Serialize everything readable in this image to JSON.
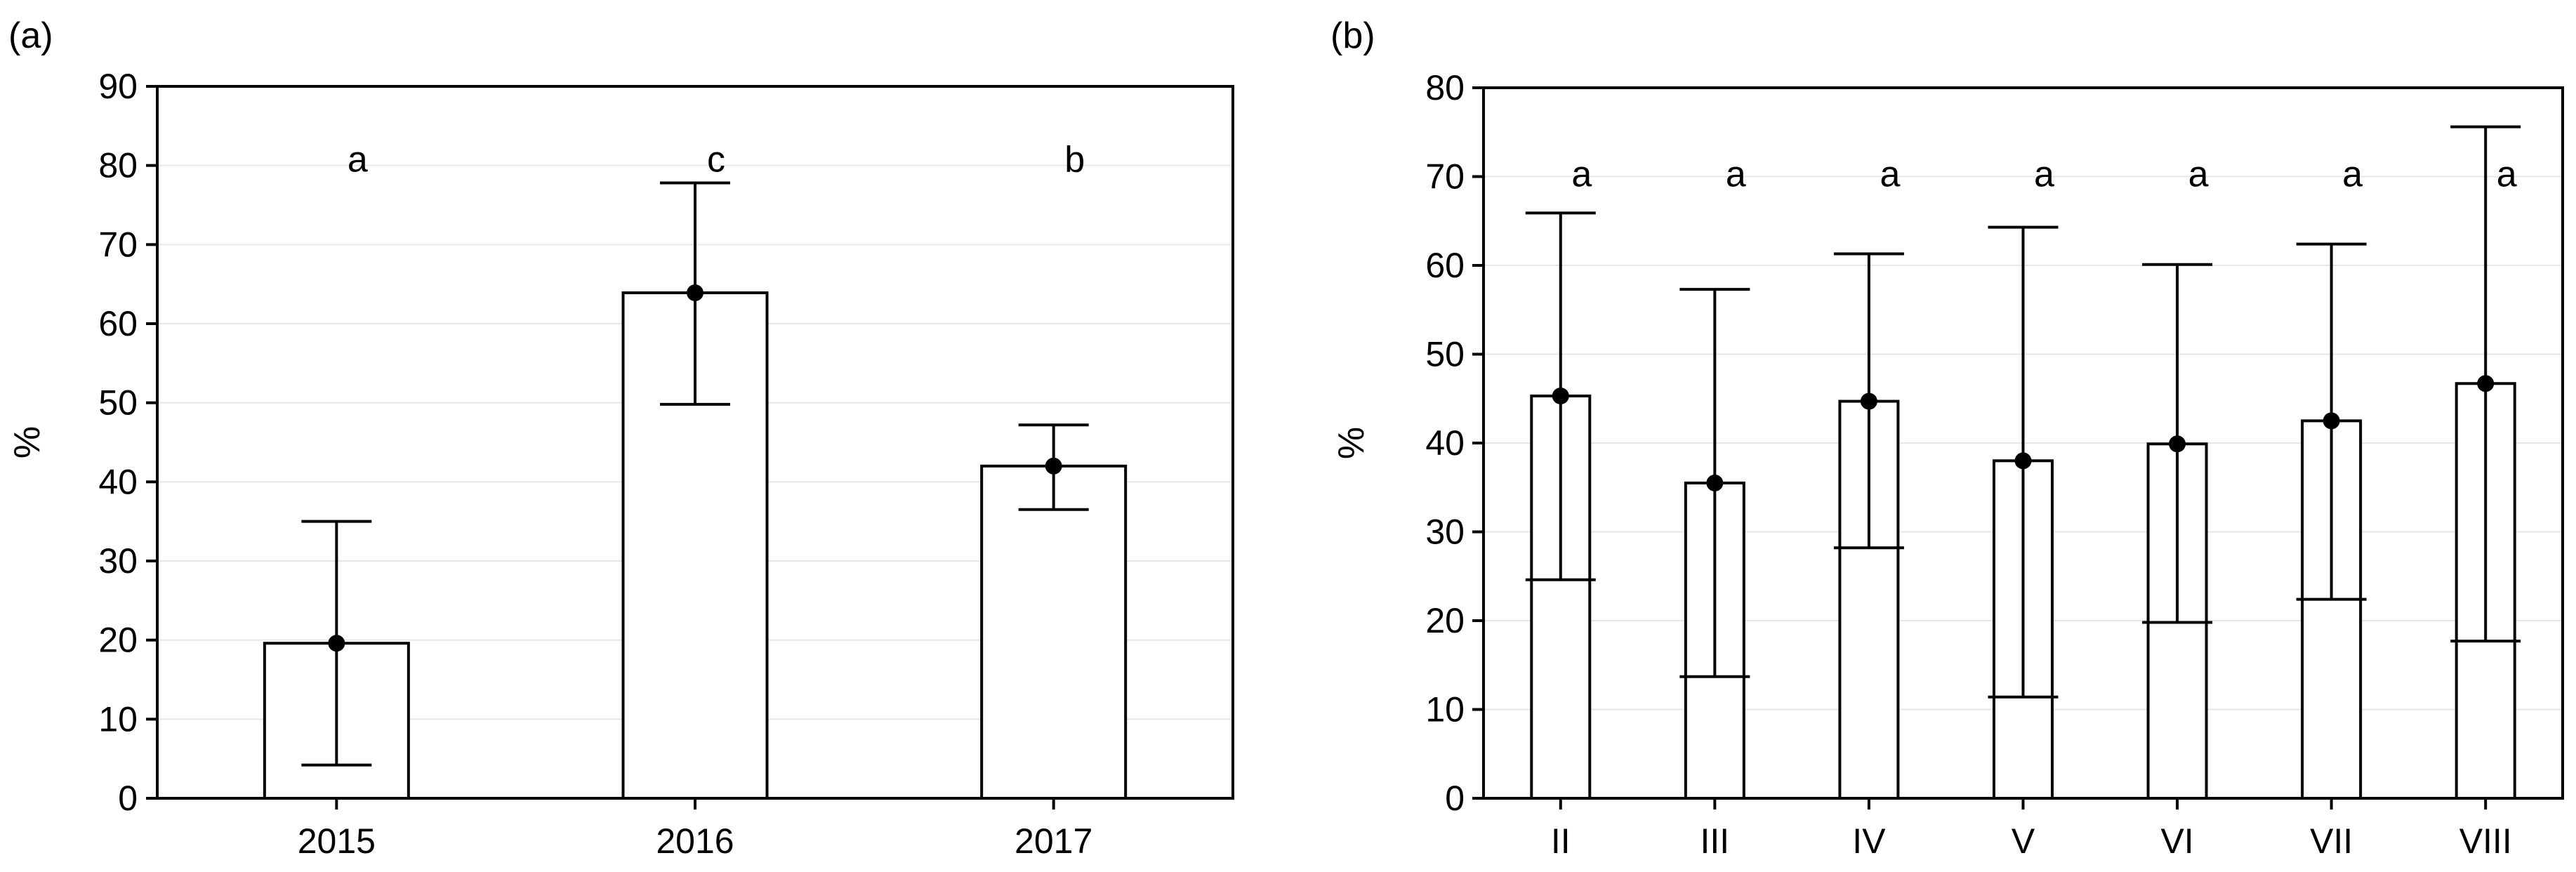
{
  "chart_data": [
    {
      "panel": "(a)",
      "type": "bar",
      "title": "",
      "xlabel": "",
      "ylabel": "%",
      "ylim": [
        0,
        90
      ],
      "yticks": [
        0,
        10,
        20,
        30,
        40,
        50,
        60,
        70,
        80,
        90
      ],
      "grid": true,
      "categories": [
        "2015",
        "2016",
        "2017"
      ],
      "values": [
        19.6,
        63.9,
        42.0
      ],
      "error_low": [
        4.2,
        49.8,
        36.5
      ],
      "error_high": [
        35.0,
        77.8,
        47.2
      ],
      "letters": [
        "a",
        "c",
        "b"
      ],
      "letter_y": 80.8
    },
    {
      "panel": "(b)",
      "type": "bar",
      "title": "",
      "xlabel": "",
      "ylabel": "%",
      "ylim": [
        0,
        80
      ],
      "yticks": [
        0,
        10,
        20,
        30,
        40,
        50,
        60,
        70,
        80
      ],
      "grid": true,
      "categories": [
        "II",
        "III",
        "IV",
        "V",
        "VI",
        "VII",
        "VIII"
      ],
      "values": [
        45.3,
        35.5,
        44.7,
        38.0,
        39.9,
        42.5,
        46.7
      ],
      "error_low": [
        24.6,
        13.7,
        28.2,
        11.4,
        19.8,
        22.4,
        17.7
      ],
      "error_high": [
        65.9,
        57.3,
        61.3,
        64.3,
        60.1,
        62.4,
        75.6
      ],
      "letters": [
        "a",
        "a",
        "a",
        "a",
        "a",
        "a",
        "a"
      ],
      "letter_y": 70.3
    }
  ]
}
